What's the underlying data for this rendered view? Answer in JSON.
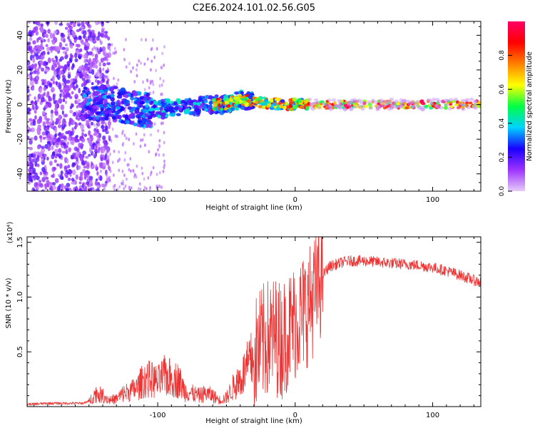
{
  "figure": {
    "title": "C2E6.2024.101.02.56.G05"
  },
  "chart_data": [
    {
      "type": "heatmap",
      "xlabel": "Height of straight line (km)",
      "ylabel": "Frequency (Hz)",
      "xlim": [
        -195,
        135
      ],
      "ylim": [
        -50,
        48
      ],
      "xticks": [
        -100,
        0,
        100
      ],
      "yticks": [
        -40,
        -20,
        0,
        20,
        40
      ],
      "grid": false,
      "ridge": {
        "x": [
          -150,
          -140,
          -130,
          -120,
          -110,
          -100,
          -90,
          -80,
          -70,
          -60,
          -50,
          -40,
          -30,
          -20,
          -10,
          0,
          10,
          20,
          40,
          60,
          80,
          100,
          120,
          133
        ],
        "y": [
          0,
          1,
          0,
          -1,
          -3,
          -3,
          -2,
          -2,
          -1,
          0,
          0,
          3,
          2,
          1,
          0,
          0,
          0,
          0,
          0,
          0,
          0,
          0,
          0,
          0
        ]
      },
      "colorbar": {
        "label": "Normalized spectral amplitude",
        "range": [
          0.0,
          1.0
        ],
        "ticks": [
          0.0,
          0.2,
          0.4,
          0.6,
          0.8
        ],
        "tick_labels": [
          "0.0",
          "0.2",
          "0.4",
          "0.6",
          "0.8"
        ],
        "colors": [
          "#e6ccf8",
          "#9e33ff",
          "#1a00ff",
          "#00d2ff",
          "#00ff44",
          "#ffff00",
          "#ff8000",
          "#ff0000",
          "#ff0066"
        ]
      }
    },
    {
      "type": "line",
      "xlabel": "Height of straight line (km)",
      "ylabel": "SNR (10 * v/v)",
      "scale_label": "(x10⁴)",
      "xlim": [
        -195,
        135
      ],
      "ylim": [
        0,
        1.55
      ],
      "xticks": [
        -100,
        0,
        100
      ],
      "yticks": [
        0.5,
        1.0,
        1.5
      ],
      "ytick_labels": [
        "0.5",
        "1.0",
        "1.5"
      ],
      "grid": false,
      "series": [
        {
          "color": "#ee3333",
          "x": [
            -195,
            -180,
            -165,
            -155,
            -150,
            -145,
            -140,
            -135,
            -130,
            -125,
            -120,
            -115,
            -110,
            -105,
            -100,
            -95,
            -90,
            -85,
            -80,
            -75,
            -70,
            -65,
            -60,
            -55,
            -50,
            -45,
            -40,
            -35,
            -30,
            -25,
            -20,
            -15,
            -10,
            -5,
            0,
            5,
            10,
            15,
            20,
            25,
            30,
            35,
            40,
            50,
            60,
            70,
            80,
            90,
            100,
            110,
            120,
            133
          ],
          "y": [
            0.02,
            0.03,
            0.03,
            0.03,
            0.05,
            0.12,
            0.1,
            0.06,
            0.07,
            0.12,
            0.14,
            0.17,
            0.25,
            0.25,
            0.22,
            0.28,
            0.26,
            0.24,
            0.14,
            0.12,
            0.1,
            0.12,
            0.1,
            0.06,
            0.08,
            0.18,
            0.25,
            0.35,
            0.45,
            0.55,
            0.62,
            0.65,
            0.6,
            0.7,
            0.78,
            0.85,
            0.92,
            1.05,
            1.2,
            1.28,
            1.3,
            1.32,
            1.33,
            1.33,
            1.32,
            1.31,
            1.3,
            1.29,
            1.27,
            1.24,
            1.2,
            1.14
          ]
        }
      ]
    }
  ]
}
